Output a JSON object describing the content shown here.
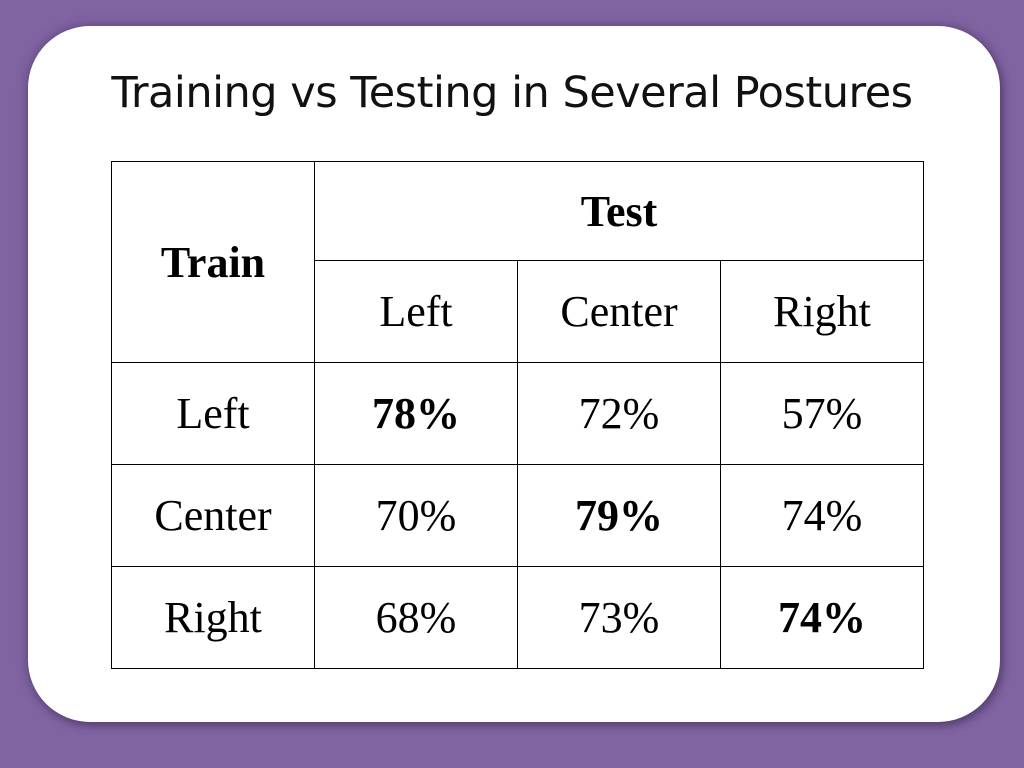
{
  "slide": {
    "title": "Training vs Testing in Several Postures"
  },
  "table": {
    "train_header": "Train",
    "test_header": "Test",
    "columns": [
      "Left",
      "Center",
      "Right"
    ],
    "rows": [
      {
        "label": "Left",
        "cells": [
          "78%",
          "72%",
          "57%"
        ]
      },
      {
        "label": "Center",
        "cells": [
          "70%",
          "79%",
          "74%"
        ]
      },
      {
        "label": "Right",
        "cells": [
          "68%",
          "73%",
          "74%"
        ]
      }
    ],
    "bold_cells": [
      [
        0,
        0
      ],
      [
        1,
        1
      ],
      [
        2,
        2
      ]
    ]
  },
  "colors": {
    "background": "#8064a2",
    "slide": "#ffffff",
    "text": "#000000"
  }
}
